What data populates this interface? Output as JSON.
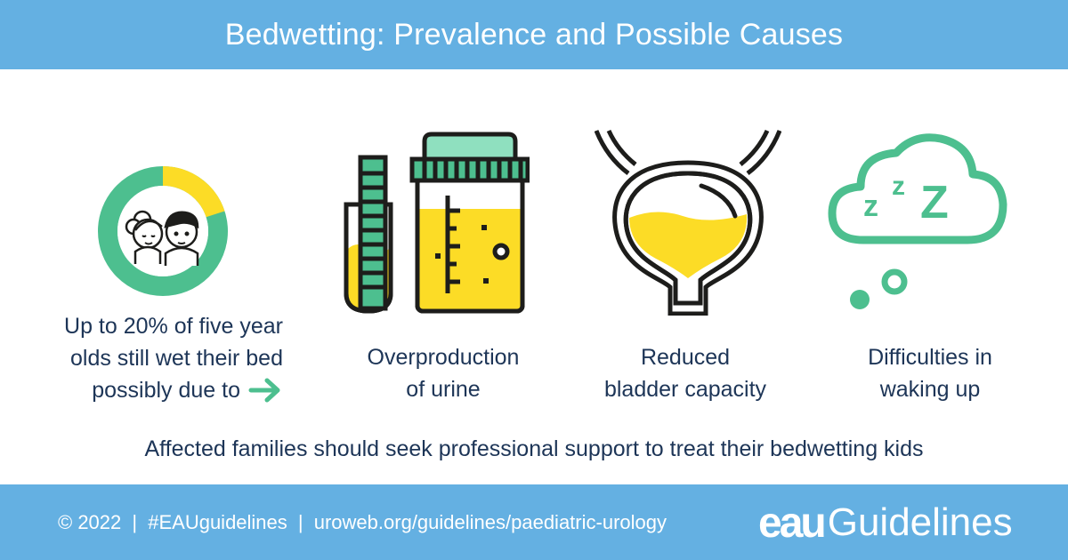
{
  "header": {
    "title": "Bedwetting: Prevalence and Possible Causes"
  },
  "stat": {
    "line1": "Up to 20% of five year",
    "line2": "olds still wet their bed",
    "line3": "possibly due to",
    "percent": 20
  },
  "causes": [
    {
      "line1": "Overproduction",
      "line2": "of urine",
      "icon": "urine-sample-icon"
    },
    {
      "line1": "Reduced",
      "line2": "bladder capacity",
      "icon": "bladder-icon"
    },
    {
      "line1": "Difficulties in",
      "line2": "waking up",
      "icon": "sleep-cloud-icon"
    }
  ],
  "sleep_icon_text": "z z Z",
  "message": "Affected families should seek professional support to treat their bedwetting kids",
  "footer": {
    "copyright": "© 2022",
    "hashtag": "#EAUguidelines",
    "url": "uroweb.org/guidelines/paediatric-urology",
    "separator": "|",
    "brand_logo": "eau",
    "brand_word": "Guidelines"
  },
  "colors": {
    "header_bg": "#64b0e2",
    "green": "#4dbf8f",
    "yellow": "#fcdc26",
    "dark": "#1d1d1b",
    "mint": "#8fe0bf",
    "text": "#1d3557"
  }
}
